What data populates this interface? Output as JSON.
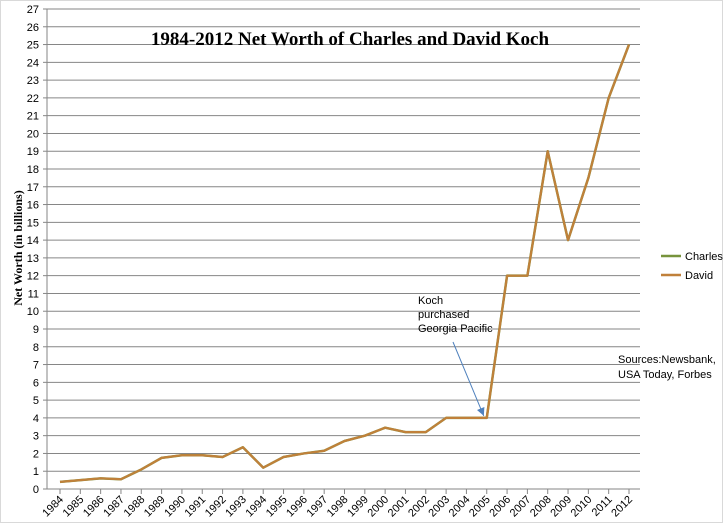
{
  "chart_data": {
    "type": "line",
    "title": "1984-2012 Net Worth of Charles and David Koch",
    "ylabel": "Net Worth (in billions)",
    "xlabel": "",
    "ylim": [
      0,
      27
    ],
    "y_ticks": [
      0,
      1,
      2,
      3,
      4,
      5,
      6,
      7,
      8,
      9,
      10,
      11,
      12,
      13,
      14,
      15,
      16,
      17,
      18,
      19,
      20,
      21,
      22,
      23,
      24,
      25,
      26,
      27
    ],
    "grid": "horizontal",
    "legend_position": "right",
    "categories": [
      "1984",
      "1985",
      "1986",
      "1987",
      "1988",
      "1989",
      "1990",
      "1991",
      "1992",
      "1993",
      "1994",
      "1995",
      "1996",
      "1997",
      "1998",
      "1999",
      "2000",
      "2001",
      "2002",
      "2003",
      "2004",
      "2005",
      "2006",
      "2007",
      "2008",
      "2009",
      "2010",
      "2011",
      "2012"
    ],
    "series": [
      {
        "name": "Charles",
        "color": "#77933c",
        "values": [
          0.4,
          0.5,
          0.6,
          0.55,
          1.1,
          1.75,
          1.9,
          1.9,
          1.8,
          2.35,
          1.2,
          1.8,
          2.0,
          2.15,
          2.7,
          3.0,
          3.45,
          3.2,
          3.2,
          4.0,
          4.0,
          4.0,
          12.0,
          12.0,
          19.0,
          14.0,
          17.5,
          22.0,
          25.0
        ]
      },
      {
        "name": "David",
        "color": "#e46c0a",
        "values": [
          0.4,
          0.5,
          0.6,
          0.55,
          1.1,
          1.75,
          1.9,
          1.9,
          1.8,
          2.35,
          1.2,
          1.8,
          2.0,
          2.15,
          2.7,
          3.0,
          3.45,
          3.2,
          3.2,
          4.0,
          4.0,
          4.0,
          12.0,
          12.0,
          19.0,
          14.0,
          17.5,
          22.0,
          25.0
        ]
      }
    ],
    "annotations": [
      {
        "lines": [
          "Koch",
          "purchased",
          "Georgia Pacific"
        ],
        "points_to": {
          "x": "2005",
          "y": 4.0
        },
        "arrow_color": "#4f81bd"
      },
      {
        "lines": [
          "Sources:Newsbank,",
          "USA Today, Forbes"
        ]
      }
    ]
  }
}
